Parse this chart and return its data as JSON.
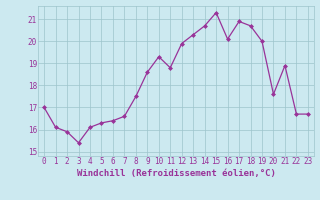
{
  "x": [
    0,
    1,
    2,
    3,
    4,
    5,
    6,
    7,
    8,
    9,
    10,
    11,
    12,
    13,
    14,
    15,
    16,
    17,
    18,
    19,
    20,
    21,
    22,
    23
  ],
  "y": [
    17.0,
    16.1,
    15.9,
    15.4,
    16.1,
    16.3,
    16.4,
    16.6,
    17.5,
    18.6,
    19.3,
    18.8,
    19.9,
    20.3,
    20.7,
    21.3,
    20.1,
    20.9,
    20.7,
    20.0,
    17.6,
    18.9,
    16.7,
    16.7
  ],
  "line_color": "#993399",
  "marker": "D",
  "markersize": 2.0,
  "linewidth": 0.9,
  "xlabel": "Windchill (Refroidissement éolien,°C)",
  "xlim": [
    -0.5,
    23.5
  ],
  "ylim": [
    14.8,
    21.6
  ],
  "yticks": [
    15,
    16,
    17,
    18,
    19,
    20,
    21
  ],
  "xticks": [
    0,
    1,
    2,
    3,
    4,
    5,
    6,
    7,
    8,
    9,
    10,
    11,
    12,
    13,
    14,
    15,
    16,
    17,
    18,
    19,
    20,
    21,
    22,
    23
  ],
  "bg_color": "#cce9f0",
  "grid_color": "#9ec4cc",
  "tick_label_color": "#993399",
  "tick_label_fontsize": 5.5,
  "xlabel_fontsize": 6.5,
  "xlabel_color": "#993399"
}
